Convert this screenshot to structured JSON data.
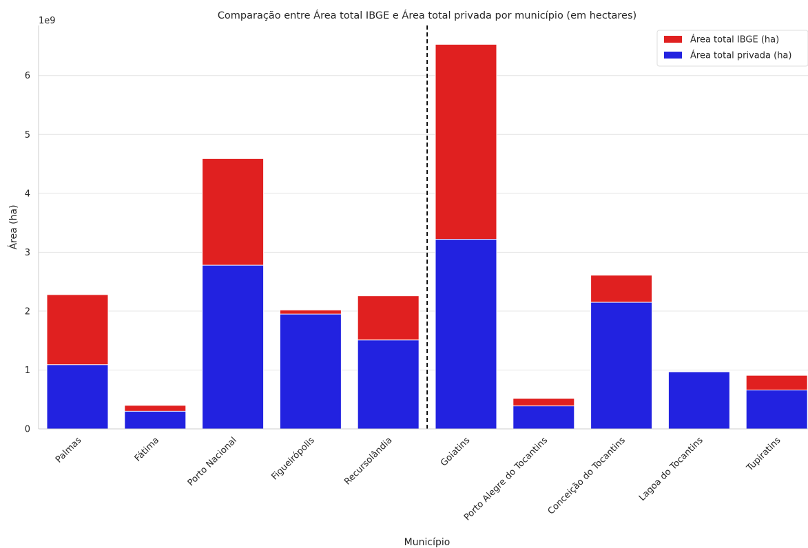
{
  "chart_data": {
    "type": "bar",
    "title": "Comparação entre Área total IBGE e Área total privada por município (em hectares)",
    "xlabel": "Município",
    "ylabel": "Área (ha)",
    "y_offset_label": "1e9",
    "ylim": [
      0,
      6.85
    ],
    "y_ticks": [
      0,
      1,
      2,
      3,
      4,
      5,
      6
    ],
    "y_scale": 1000000000.0,
    "grid": "horizontal",
    "legend_position": "top-right",
    "categories": [
      "Palmas",
      "Fátima",
      "Porto Nacional",
      "Figueirópolis",
      "Recursolândia",
      "Goiatins",
      "Porto Alegre do Tocantins",
      "Conceição do Tocantins",
      "Lagoa do Tocantins",
      "Tupiratins"
    ],
    "series": [
      {
        "name": "Área total IBGE (ha)",
        "color": "#e02020",
        "values": [
          2.28,
          0.4,
          4.59,
          2.02,
          2.26,
          6.53,
          0.52,
          2.61,
          0.97,
          0.91
        ]
      },
      {
        "name": "Área total privada (ha)",
        "color": "#2222e0",
        "values": [
          1.09,
          0.3,
          2.78,
          1.95,
          1.51,
          3.22,
          0.39,
          2.15,
          0.97,
          0.66
        ]
      }
    ],
    "divider_after_category": "Recursolândia"
  }
}
